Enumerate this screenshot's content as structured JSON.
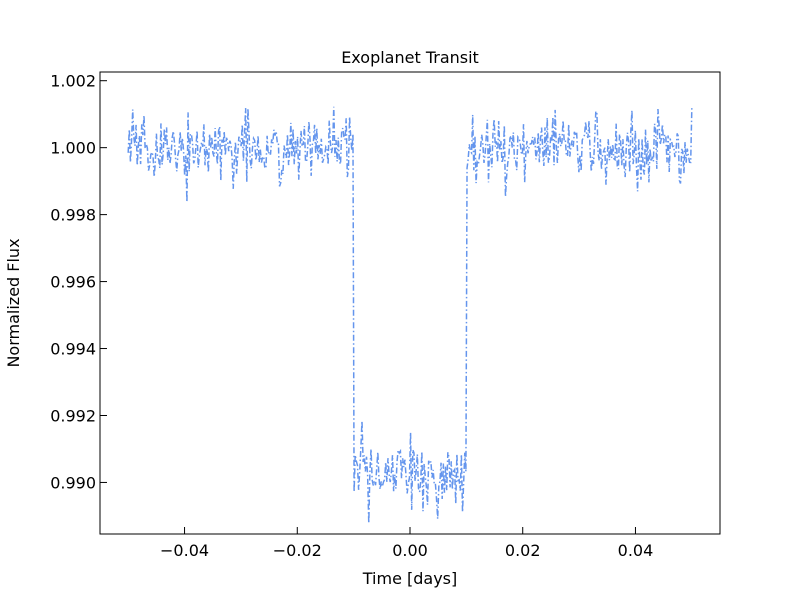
{
  "chart_data": {
    "type": "line",
    "title": "Exoplanet Transit",
    "xlabel": "Time [days]",
    "ylabel": "Normalized Flux",
    "xlim": [
      -0.055,
      0.055
    ],
    "ylim": [
      0.98846,
      1.00226
    ],
    "xticks": [
      -0.04,
      -0.02,
      0.0,
      0.02,
      0.04
    ],
    "xtick_labels": [
      "−0.04",
      "−0.02",
      "0.00",
      "0.02",
      "0.04"
    ],
    "yticks": [
      0.99,
      0.992,
      0.994,
      0.996,
      0.998,
      1.0,
      1.002
    ],
    "ytick_labels": [
      "0.990",
      "0.992",
      "0.994",
      "0.996",
      "0.998",
      "1.000",
      "1.002"
    ],
    "grid": false,
    "line_style": "dashdot",
    "series": [
      {
        "color": "#6495ED",
        "x_range": [
          -0.05,
          0.05
        ],
        "n_points": 500,
        "baseline_flux": 1.0,
        "transit_start": -0.01,
        "transit_end": 0.01,
        "in_transit_flux": 0.9902,
        "noise_sigma": 0.0005
      }
    ]
  }
}
